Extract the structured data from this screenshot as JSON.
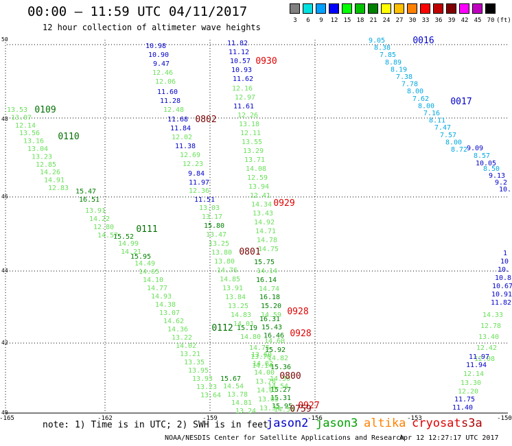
{
  "header": {
    "title": "00:00 — 11:59 UTC 04/11/2017",
    "subtitle": "12 hour collection of altimeter wave heights"
  },
  "colorscale": {
    "unit": "(ft)",
    "colors": [
      "#808080",
      "#00e0e0",
      "#00a0ff",
      "#0000ff",
      "#00ff00",
      "#00c000",
      "#008000",
      "#ffff00",
      "#ffc000",
      "#ff8000",
      "#ff0000",
      "#c00000",
      "#800000",
      "#ff00ff",
      "#c000c0",
      "#000000"
    ],
    "labels": [
      "3",
      "6",
      "9",
      "12",
      "15",
      "18",
      "21",
      "24",
      "27",
      "30",
      "33",
      "36",
      "39",
      "42",
      "45",
      "70"
    ]
  },
  "axes": {
    "lat_labels": [
      "50",
      "48",
      "46",
      "44",
      "42",
      "40"
    ],
    "lon_labels": [
      "-165",
      "-162",
      "-159",
      "-156",
      "-153",
      "-150"
    ]
  },
  "tracks": [
    {
      "tint": "#0000c8",
      "values": [
        "10.98",
        "10.90",
        "9.47"
      ]
    },
    {
      "tint": "#6ae05a",
      "values": [
        "12.46",
        "12.06"
      ]
    },
    {
      "tint": "#0000c8",
      "values": [
        "11.60",
        "11.28"
      ]
    },
    {
      "tint": "#6ae05a",
      "values": [
        "12.48"
      ]
    },
    {
      "tint": "#0000c8",
      "values": [
        "11.68",
        "11.84"
      ]
    },
    {
      "tint": "#6ae05a",
      "values": [
        "12.02"
      ]
    },
    {
      "tint": "#0000c8",
      "values": [
        "11.38"
      ]
    },
    {
      "tint": "#6ae05a",
      "values": [
        "12.69",
        "12.23"
      ]
    },
    {
      "tint": "#0000c8",
      "values": [
        "9.84",
        "11.97"
      ]
    },
    {
      "tint": "#6ae05a",
      "values": [
        "12.36"
      ]
    },
    {
      "tint": "#0000c8",
      "values": [
        "11.51"
      ]
    },
    {
      "tint": "#6ae05a",
      "values": [
        "13.03",
        "13.17"
      ]
    },
    {
      "tint": "#008000",
      "values": [
        "15.80"
      ]
    },
    {
      "tint": "#6ae05a",
      "values": [
        "13.47",
        "13.25",
        "13.80",
        "13.80",
        "14.76",
        "14.85",
        "13.91",
        "13.84",
        "13.25",
        "14.83",
        "14.01"
      ]
    },
    {
      "tint": "#008000",
      "values": [
        "15.19"
      ]
    },
    {
      "tint": "#6ae05a",
      "values": [
        "14.80"
      ]
    }
  ],
  "track_b": {
    "tint": "#0000c8",
    "values": [
      "11.82",
      "11.12",
      "10.57",
      "10.93",
      "11.62"
    ]
  },
  "track_b2": {
    "tint": "#6ae05a",
    "values": [
      "12.16",
      "12.97"
    ]
  },
  "track_b3": {
    "tint": "#0000c8",
    "values": [
      "11.61"
    ]
  },
  "track_b4": {
    "tint": "#6ae05a",
    "values": [
      "12.26",
      "13.18",
      "12.11",
      "13.55",
      "13.29",
      "13.71",
      "14.08",
      "12.59",
      "13.94",
      "12.41",
      "14.34",
      "13.43",
      "14.92",
      "14.71",
      "14.78",
      "14.75"
    ]
  },
  "track_b5": {
    "tint": "#008000",
    "values": [
      "15.75"
    ]
  },
  "track_b6": {
    "tint": "#6ae05a",
    "values": [
      "14.14"
    ]
  },
  "track_b7": {
    "tint": "#008000",
    "values": [
      "16.14"
    ]
  },
  "track_b8": {
    "tint": "#6ae05a",
    "values": [
      "14.74"
    ]
  },
  "track_b9": {
    "tint": "#008000",
    "values": [
      "16.18",
      "15.20"
    ]
  },
  "track_b10": {
    "tint": "#6ae05a",
    "values": [
      "14.59"
    ]
  },
  "track_b11": {
    "tint": "#008000",
    "values": [
      "16.31",
      "15.43",
      "16.46"
    ]
  },
  "track_b12": {
    "tint": "#6ae05a",
    "values": [
      "14.60"
    ]
  },
  "track_b13": {
    "tint": "#008000",
    "values": [
      "15.92"
    ]
  },
  "track_b14": {
    "tint": "#6ae05a",
    "values": [
      "14.82"
    ]
  },
  "track_b15": {
    "tint": "#008000",
    "values": [
      "15.36"
    ]
  },
  "track_b16": {
    "tint": "#6ae05a",
    "values": [
      "14.50"
    ]
  },
  "track_b17": {
    "tint": "#008000",
    "values": [
      "15.27",
      "15.31"
    ]
  },
  "track_b18": {
    "tint": "#6ae05a",
    "values": [
      "14.54"
    ]
  },
  "track_b19": {
    "tint": "#008000",
    "values": [
      "15.95"
    ]
  },
  "track_b20": {
    "tint": "#6ae05a",
    "values": [
      "14.54"
    ]
  },
  "track_c": {
    "tint": "#6ae05a",
    "values": [
      "13.53",
      "13.07",
      "12.14",
      "13.56",
      "13.16",
      "13.04",
      "13.23",
      "12.85",
      "14.26",
      "14.91",
      "12.83"
    ]
  },
  "track_c2": {
    "tint": "#008000",
    "values": [
      "15.47",
      "16.51"
    ]
  },
  "track_c3": {
    "tint": "#6ae05a",
    "values": [
      "13.91",
      "14.22",
      "12.80",
      "14.57"
    ]
  },
  "track_c4": {
    "tint": "#008000",
    "values": [
      "15.52"
    ]
  },
  "track_c5": {
    "tint": "#6ae05a",
    "values": [
      "14.99",
      "14.21"
    ]
  },
  "track_c6": {
    "tint": "#008000",
    "values": [
      "15.95"
    ]
  },
  "track_c7": {
    "tint": "#6ae05a",
    "values": [
      "14.49",
      "14.65",
      "14.10",
      "14.77",
      "14.93",
      "14.38",
      "13.07",
      "14.62",
      "14.36",
      "13.22",
      "14.02",
      "13.21",
      "13.35",
      "13.95",
      "13.93",
      "13.23",
      "13.64"
    ]
  },
  "track_c8": {
    "tint": "#008000",
    "values": [
      "15.67"
    ]
  },
  "track_c9": {
    "tint": "#6ae05a",
    "values": [
      "14.54",
      "13.78",
      "14.81",
      "13.24"
    ]
  },
  "track_c10": {
    "tint": "#6ae05a",
    "values": [
      "13.60",
      "14.82",
      "14.00",
      "13.78",
      "14.07",
      "13.05",
      "13.34"
    ]
  },
  "track_c11": {
    "tint": "#6ae05a",
    "values": [
      "14.75",
      "13.76",
      "14.14"
    ]
  },
  "track_d": {
    "tint": "#00a8e0",
    "values": [
      "9.05",
      "8.38",
      "7.85",
      "8.89",
      "8.19",
      "7.38",
      "7.78",
      "8.00",
      "7.62",
      "8.00",
      "7.16",
      "8.11",
      "7.47",
      "7.57",
      "8.00",
      "8.72"
    ]
  },
  "track_d2": {
    "tint": "#0000c8",
    "values": [
      "9.09"
    ]
  },
  "track_d3": {
    "tint": "#00a8e0",
    "values": [
      "8.57"
    ]
  },
  "track_d4": {
    "tint": "#0000c8",
    "values": [
      "10.05"
    ]
  },
  "track_d5": {
    "tint": "#00a8e0",
    "values": [
      "8.50"
    ]
  },
  "track_d6": {
    "tint": "#0000c8",
    "values": [
      "9.13",
      "9.2",
      "10."
    ]
  },
  "track_e": {
    "tint": "#0000c8",
    "values": [
      "1",
      "10",
      "10.",
      "10.8",
      "10.67",
      "10.91",
      "11.82"
    ]
  },
  "track_e2": {
    "tint": "#6ae05a",
    "values": [
      "14.33",
      "12.78",
      "13.40",
      "12.42",
      "12.08"
    ]
  },
  "track_e3": {
    "tint": "#0000c8",
    "values": [
      "11.97",
      "11.94"
    ]
  },
  "track_e4": {
    "tint": "#6ae05a",
    "values": [
      "12.14",
      "13.30",
      "12.20"
    ]
  },
  "track_e5": {
    "tint": "#0000c8",
    "values": [
      "11.75",
      "11.40"
    ]
  },
  "time_labels": [
    {
      "text": "0109",
      "color": "#007000"
    },
    {
      "text": "0110",
      "color": "#007000"
    },
    {
      "text": "0111",
      "color": "#007000"
    },
    {
      "text": "0112",
      "color": "#007000"
    },
    {
      "text": "0016",
      "color": "#0000c8"
    },
    {
      "text": "0017",
      "color": "#0000c8"
    },
    {
      "text": "0930",
      "color": "#e00000"
    },
    {
      "text": "0929",
      "color": "#e00000"
    },
    {
      "text": "0928",
      "color": "#e00000"
    },
    {
      "text": "0928",
      "color": "#e00000"
    },
    {
      "text": "0927",
      "color": "#e00000"
    },
    {
      "text": "0802",
      "color": "#7a0000"
    },
    {
      "text": "0801",
      "color": "#7a0000"
    },
    {
      "text": "0800",
      "color": "#7a0000"
    },
    {
      "text": "0759",
      "color": "#7a0000"
    }
  ],
  "footer": {
    "note": "note: 1) Time is in UTC; 2) SWH is in feet",
    "legend": [
      {
        "text": "jason2",
        "color": "#0000c8"
      },
      {
        "text": "jason3",
        "color": "#00a000"
      },
      {
        "text": "altika",
        "color": "#ff8000"
      },
      {
        "text": "cryosat",
        "color": "#e00000"
      },
      {
        "text": "s3a",
        "color": "#b00000"
      }
    ],
    "credit": "NOAA/NESDIS Center for Satellite Applications and Research",
    "timestamp": "Apr 12 12:27:17 UTC 2017"
  }
}
